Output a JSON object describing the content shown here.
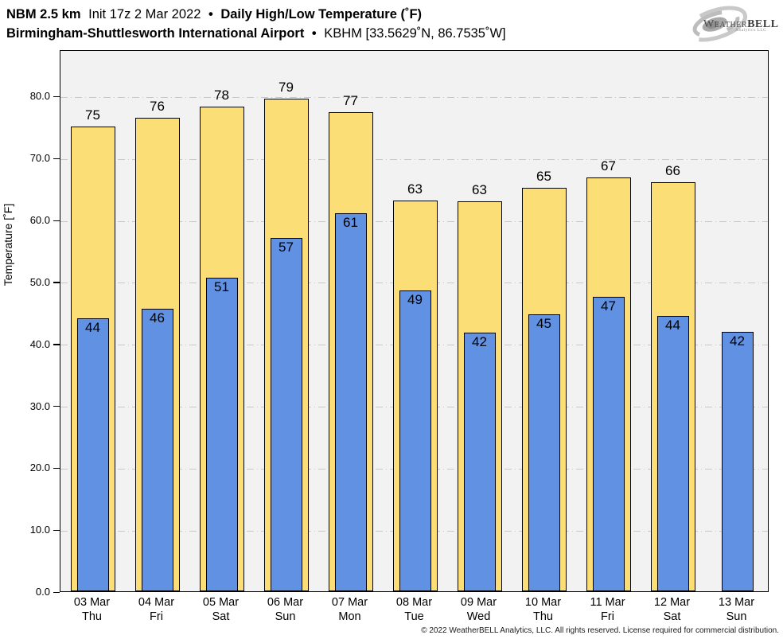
{
  "header": {
    "line1": {
      "model": "NBM 2.5 km",
      "init": "Init 17z 2 Mar 2022",
      "sep": "•",
      "product": "Daily High/Low Temperature (˚F)"
    },
    "line2": {
      "station": "Birmingham-Shuttlesworth International Airport",
      "sep": "•",
      "station_id": "KBHM [33.5629˚N, 86.7535˚W]"
    }
  },
  "logo": {
    "brand_weather": "Weather",
    "brand_bell": "BELL",
    "tagline": "Analytics LLC"
  },
  "footer": {
    "copyright": "© 2022 WeatherBELL Analytics, LLC. All rights reserved. License required for commercial distribution."
  },
  "colors": {
    "high_bar": "#fbde75",
    "low_bar": "#6191e3",
    "bar_border": "#000000",
    "plot_bg": "#f2f2f2",
    "grid": "#c8c8c8",
    "page_bg": "#ffffff"
  },
  "chart_data": {
    "type": "bar",
    "title": "Daily High/Low Temperature (˚F)",
    "subtitle": "Birmingham-Shuttlesworth International Airport • KBHM [33.5629˚N, 86.7535˚W]",
    "xlabel": "",
    "ylabel": "Temperature [˚F]",
    "ylim": [
      0,
      87.5
    ],
    "yticks": [
      0,
      10,
      20,
      30,
      40,
      50,
      60,
      70,
      80
    ],
    "ytick_labels": [
      "0.0",
      "10.0",
      "20.0",
      "30.0",
      "40.0",
      "50.0",
      "60.0",
      "70.0",
      "80.0"
    ],
    "grid": "horizontal-dash-dot",
    "legend_position": "none",
    "categories": [
      {
        "date": "03 Mar",
        "weekday": "Thu"
      },
      {
        "date": "04 Mar",
        "weekday": "Fri"
      },
      {
        "date": "05 Mar",
        "weekday": "Sat"
      },
      {
        "date": "06 Mar",
        "weekday": "Sun"
      },
      {
        "date": "07 Mar",
        "weekday": "Mon"
      },
      {
        "date": "08 Mar",
        "weekday": "Tue"
      },
      {
        "date": "09 Mar",
        "weekday": "Wed"
      },
      {
        "date": "10 Mar",
        "weekday": "Thu"
      },
      {
        "date": "11 Mar",
        "weekday": "Fri"
      },
      {
        "date": "12 Mar",
        "weekday": "Sat"
      },
      {
        "date": "13 Mar",
        "weekday": "Sun"
      }
    ],
    "series": [
      {
        "name": "Daily High",
        "color": "#fbde75",
        "labels": [
          75,
          76,
          78,
          79,
          77,
          63,
          63,
          65,
          67,
          66,
          null
        ],
        "values": [
          75.0,
          76.4,
          78.2,
          79.5,
          77.3,
          63.1,
          62.9,
          65.2,
          66.8,
          66.1,
          null
        ]
      },
      {
        "name": "Daily Low",
        "color": "#6191e3",
        "labels": [
          44,
          46,
          51,
          57,
          61,
          49,
          42,
          45,
          47,
          44,
          42
        ],
        "values": [
          44.1,
          45.6,
          50.6,
          57.0,
          61.0,
          48.6,
          41.8,
          44.7,
          47.5,
          44.4,
          41.9
        ]
      }
    ]
  }
}
